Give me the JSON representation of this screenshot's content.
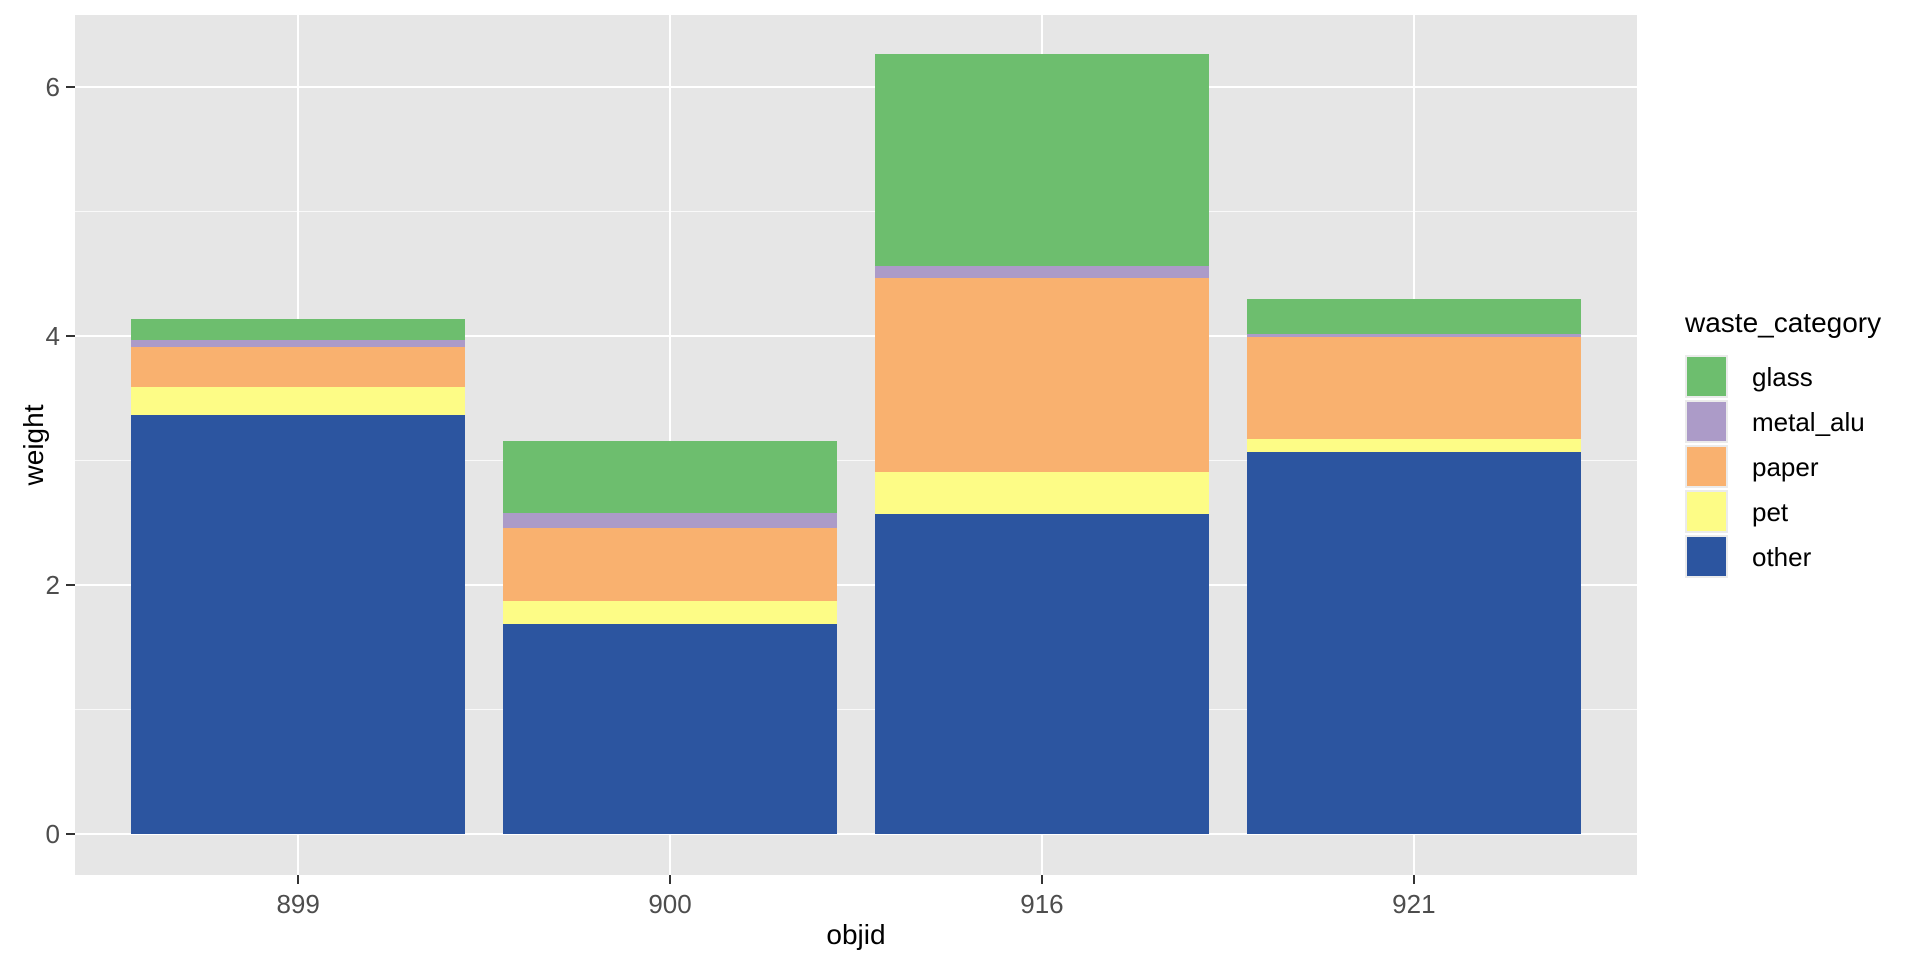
{
  "chart_data": {
    "type": "bar",
    "stacked": true,
    "title": "",
    "xlabel": "objid",
    "ylabel": "weight",
    "legend_title": "waste_category",
    "legend_position": "right",
    "categories": [
      "899",
      "900",
      "916",
      "921"
    ],
    "series": [
      {
        "name": "glass",
        "color": "#6DBE6E",
        "values": [
          0.17,
          0.58,
          1.71,
          0.28
        ]
      },
      {
        "name": "metal_alu",
        "color": "#AC9BC8",
        "values": [
          0.06,
          0.12,
          0.09,
          0.03
        ]
      },
      {
        "name": "paper",
        "color": "#F9B16F",
        "values": [
          0.32,
          0.59,
          1.56,
          0.82
        ]
      },
      {
        "name": "pet",
        "color": "#FDFC86",
        "values": [
          0.22,
          0.18,
          0.34,
          0.1
        ]
      },
      {
        "name": "other",
        "color": "#2C55A0",
        "values": [
          3.37,
          1.69,
          2.57,
          3.07
        ]
      }
    ],
    "stack_order_bottom_to_top": [
      "other",
      "pet",
      "paper",
      "metal_alu",
      "glass"
    ],
    "totals": [
      4.14,
      3.16,
      6.27,
      4.3
    ],
    "y_ticks": [
      0,
      2,
      4,
      6
    ],
    "y_tick_labels": [
      "0",
      "2",
      "4",
      "6"
    ],
    "y_minor_ticks": [
      1,
      3,
      5
    ],
    "ylim": [
      -0.33,
      6.58
    ],
    "grid": true,
    "bar_rel_width": 0.9,
    "colors": {
      "panel_bg": "#E6E6E6",
      "grid": "#FFFFFF",
      "tick_mark": "#333333",
      "tick_label": "#4D4D4D",
      "axis_title": "#000000",
      "legend_key_bg": "#EBEBEB"
    }
  }
}
